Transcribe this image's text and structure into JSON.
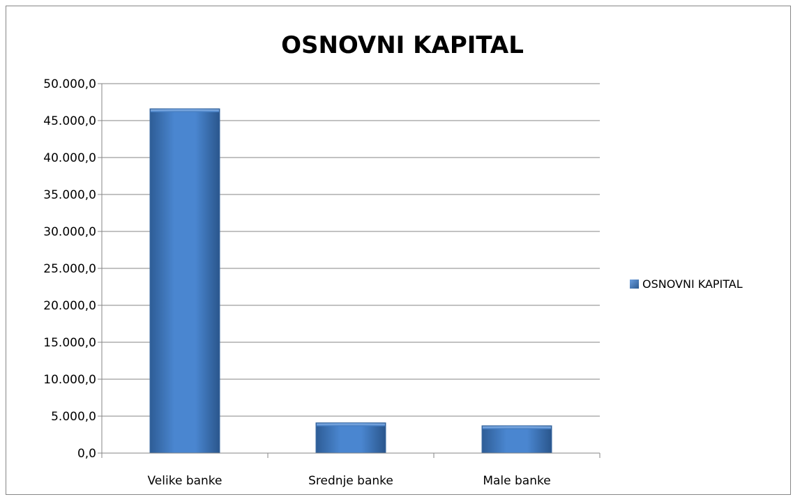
{
  "chart_data": {
    "type": "bar",
    "title": "OSNOVNI KAPITAL",
    "xlabel": "",
    "ylabel": "",
    "categories": [
      "Velike banke",
      "Srednje banke",
      "Male banke"
    ],
    "series": [
      {
        "name": "OSNOVNI KAPITAL",
        "values": [
          46600,
          4100,
          3700
        ],
        "color": "#4f81bd"
      }
    ],
    "ylim": [
      0,
      50000
    ],
    "yticks": [
      0,
      5000,
      10000,
      15000,
      20000,
      25000,
      30000,
      35000,
      40000,
      45000,
      50000
    ],
    "ytick_labels": [
      "0,0",
      "5.000,0",
      "10.000,0",
      "15.000,0",
      "20.000,0",
      "25.000,0",
      "30.000,0",
      "35.000,0",
      "40.000,0",
      "45.000,0",
      "50.000,0"
    ],
    "grid": true,
    "legend": {
      "position": "right",
      "entries": [
        "OSNOVNI KAPITAL"
      ]
    }
  }
}
